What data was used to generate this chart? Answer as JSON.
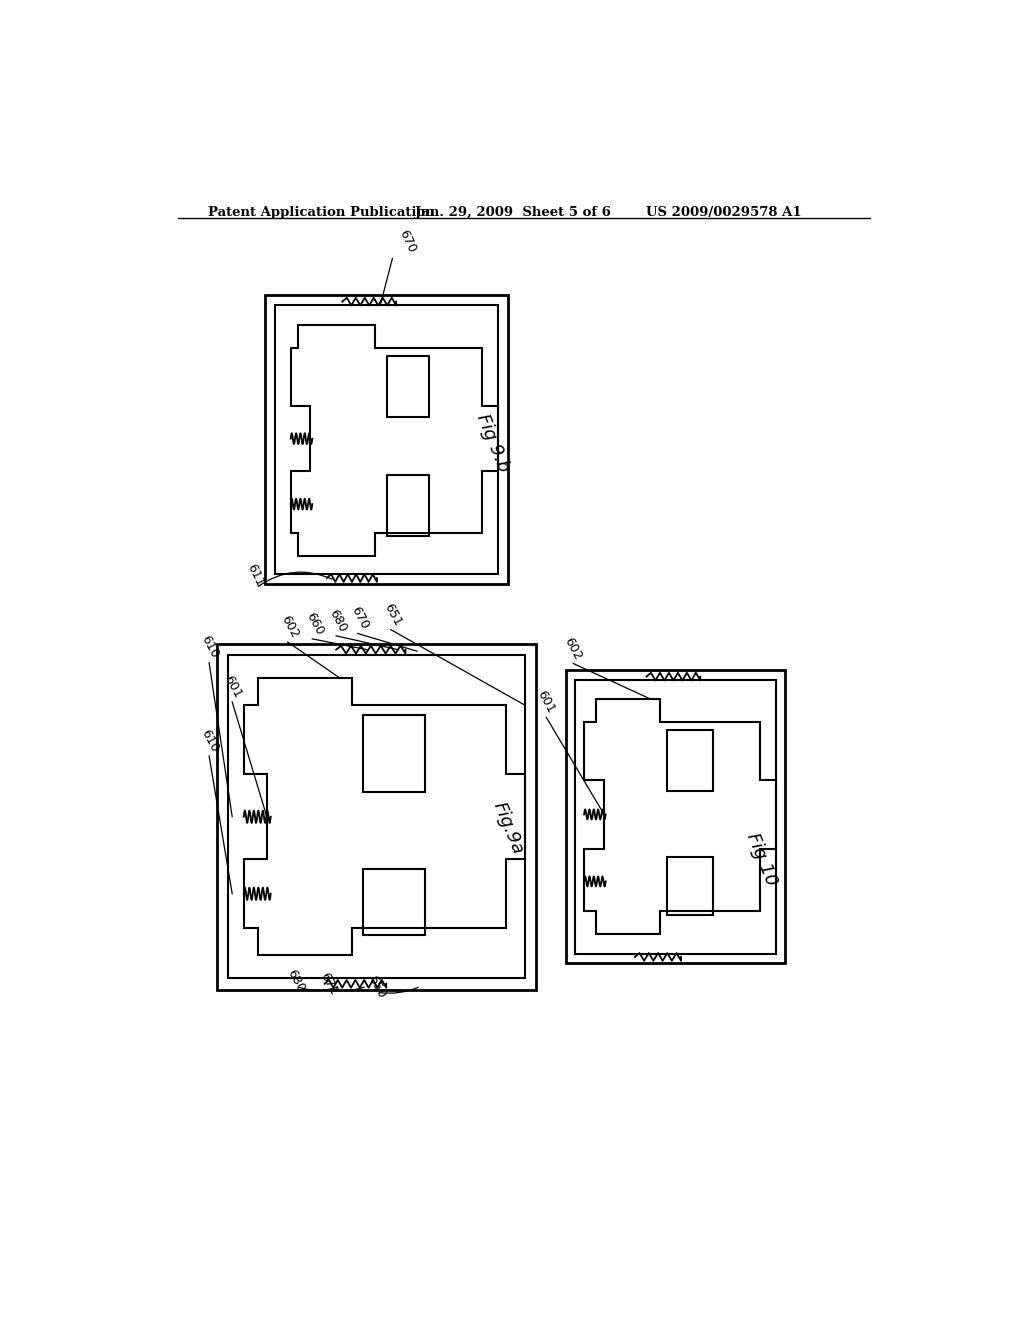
{
  "bg_color": "#ffffff",
  "header_left": "Patent Application Publication",
  "header_mid": "Jan. 29, 2009  Sheet 5 of 6",
  "header_right": "US 2009/0029578 A1",
  "fig9b_label": "Fig 9.b",
  "fig9a_label": "Fig.9a",
  "fig10_label": "Fig 10"
}
